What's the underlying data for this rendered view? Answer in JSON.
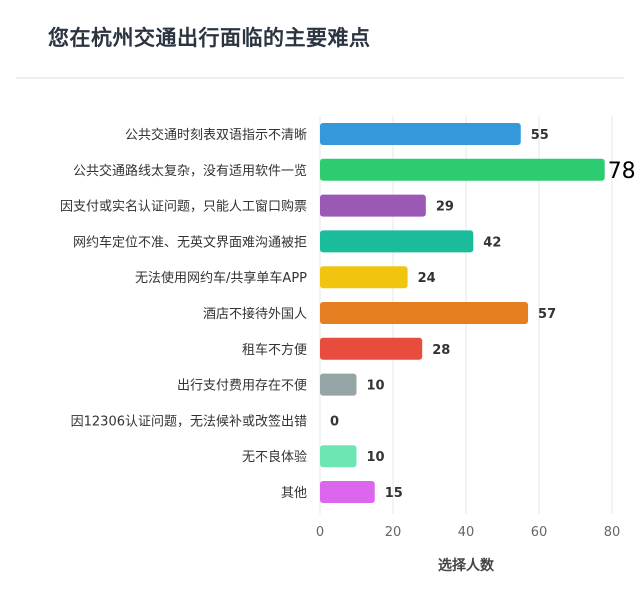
{
  "title": "您在杭州交通出行面临的主要难点",
  "chart_data": {
    "type": "bar",
    "orientation": "horizontal",
    "title": "您在杭州交通出行面临的主要难点",
    "xlabel": "选择人数",
    "ylabel": "",
    "xlim": [
      0,
      80
    ],
    "xticks": [
      0,
      20,
      40,
      60,
      80
    ],
    "grid": true,
    "categories": [
      "公共交通时刻表双语指示不清晰",
      "公共交通路线太复杂，没有适用软件一览",
      "因支付或实名认证问题，只能人工窗口购票",
      "网约车定位不准、无英文界面难沟通被拒",
      "无法使用网约车/共享单车APP",
      "酒店不接待外国人",
      "租车不方便",
      "出行支付费用存在不便",
      "因12306认证问题，无法候补或改签出错",
      "无不良体验",
      "其他"
    ],
    "values": [
      55,
      78,
      29,
      42,
      24,
      57,
      28,
      10,
      0,
      10,
      15
    ],
    "colors": [
      "#3498db",
      "#2ecc71",
      "#9b59b6",
      "#1abc9c",
      "#f1c40f",
      "#e67e22",
      "#e74c3c",
      "#95a5a6",
      "#bdc3c7",
      "#6ee6b4",
      "#dd66ee"
    ]
  }
}
